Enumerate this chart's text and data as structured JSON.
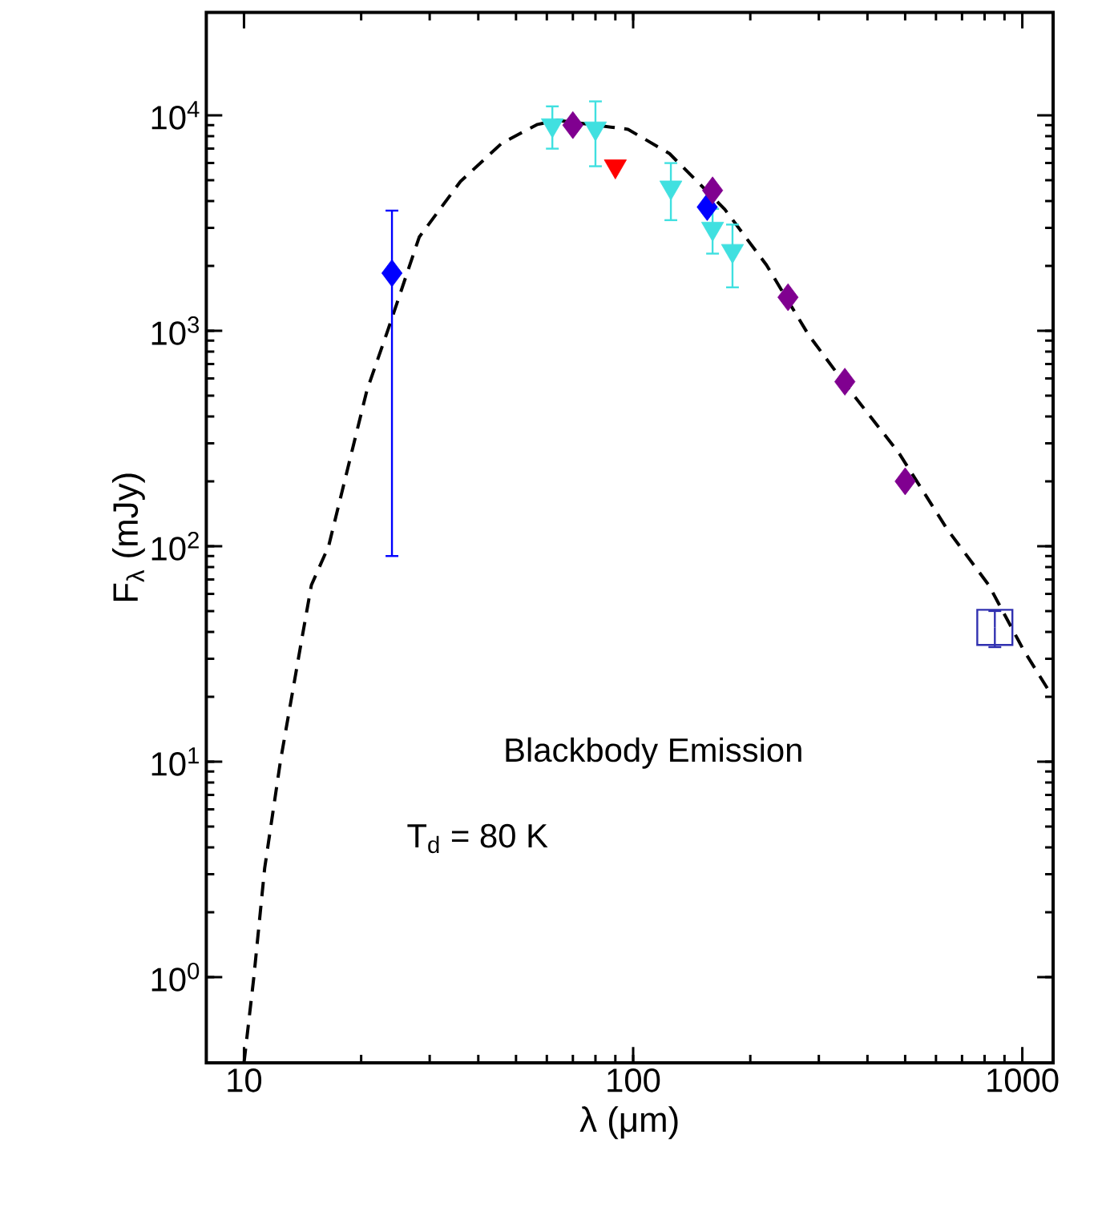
{
  "chart_data": {
    "type": "scatter",
    "xlabel": "λ (μm)",
    "ylabel": "F$_{λ}$ (mJy)",
    "log": "xy",
    "xlim": [
      8,
      1200
    ],
    "ylim": [
      0.4,
      30000
    ],
    "xticks": [
      10,
      100,
      1000
    ],
    "yticks": [
      {
        "value": 1,
        "label": "10$^{0}$"
      },
      {
        "value": 10,
        "label": "10$^{1}$"
      },
      {
        "value": 100,
        "label": "10$^{2}$"
      },
      {
        "value": 1000,
        "label": "10$^{3}$"
      },
      {
        "value": 10000,
        "label": "10$^{4}$"
      }
    ],
    "grid": false,
    "annotations": [
      "Blackbody Emission",
      "T$_{d}$ = 80 K"
    ],
    "series": [
      {
        "type": "line",
        "color": "#000000",
        "line_style": "dashed",
        "marker": "none",
        "x": [
          10,
          10.6,
          11.3,
          12.4,
          14.0,
          14.9,
          16.5,
          20.7,
          23.4,
          28.2,
          36,
          46,
          56.8,
          64,
          97,
          124,
          172,
          220,
          282,
          360,
          481,
          641,
          820,
          1007,
          1190
        ],
        "values": [
          0.4,
          1,
          3.2,
          10,
          35,
          66,
          100,
          530,
          1000,
          2720,
          4930,
          7430,
          9070,
          9480,
          8610,
          6640,
          3660,
          2020,
          960,
          530,
          272,
          120,
          66,
          33,
          20.3
        ]
      },
      {
        "color": "#0000ff",
        "marker": "diamond",
        "x": [
          24,
          155
        ],
        "values": [
          1850,
          3750
        ],
        "errors": [
          1760,
          null
        ]
      },
      {
        "color": "#40e0e0",
        "marker": "triangle",
        "x": [
          62,
          80,
          125,
          160,
          180
        ],
        "values": [
          9000,
          8700,
          4630,
          2980,
          2350
        ],
        "errors": [
          2000,
          2900,
          1370,
          700,
          760
        ]
      },
      {
        "color": "#ff0000",
        "marker": "triangle",
        "x": [
          90
        ],
        "values": [
          5800
        ]
      },
      {
        "color": "#800090",
        "marker": "diamond",
        "x": [
          70,
          160,
          250,
          350,
          500
        ],
        "values": [
          9000,
          4480,
          1430,
          580,
          200
        ]
      },
      {
        "color": "#3030b0",
        "marker": "square",
        "x": [
          850
        ],
        "values": [
          42
        ],
        "errors": [
          8
        ]
      }
    ]
  }
}
